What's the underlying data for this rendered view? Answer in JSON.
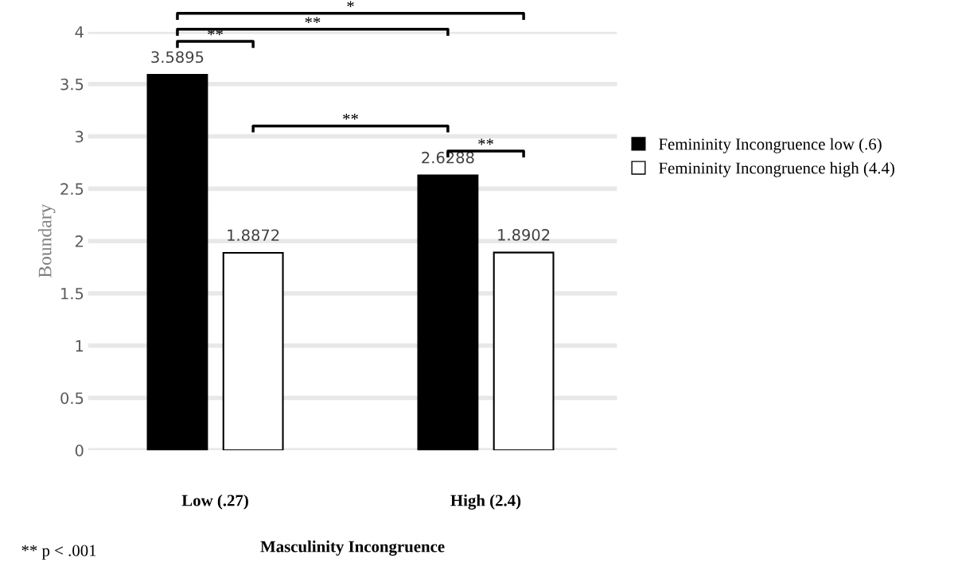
{
  "chart_data": {
    "type": "bar",
    "xlabel": "Masculinity Incongruence",
    "ylabel": "Boundary",
    "categories": [
      "Low (.27)",
      "High (2.4)"
    ],
    "series": [
      {
        "name": "Femininity Incongruence low (.6)",
        "color": "#000000",
        "values": [
          3.5895,
          2.6288
        ]
      },
      {
        "name": "Femininity Incongruence high (4.4)",
        "color": "#ffffff",
        "values": [
          1.8872,
          1.8902
        ]
      }
    ],
    "ylim": [
      0,
      4
    ],
    "yticks": [
      0,
      0.5,
      1,
      1.5,
      2,
      2.5,
      3,
      3.5,
      4
    ],
    "grid": "y",
    "legend": "right",
    "data_labels": true,
    "annotations": [
      "*",
      "**",
      "**",
      "**",
      "**",
      "** p < .001"
    ]
  }
}
